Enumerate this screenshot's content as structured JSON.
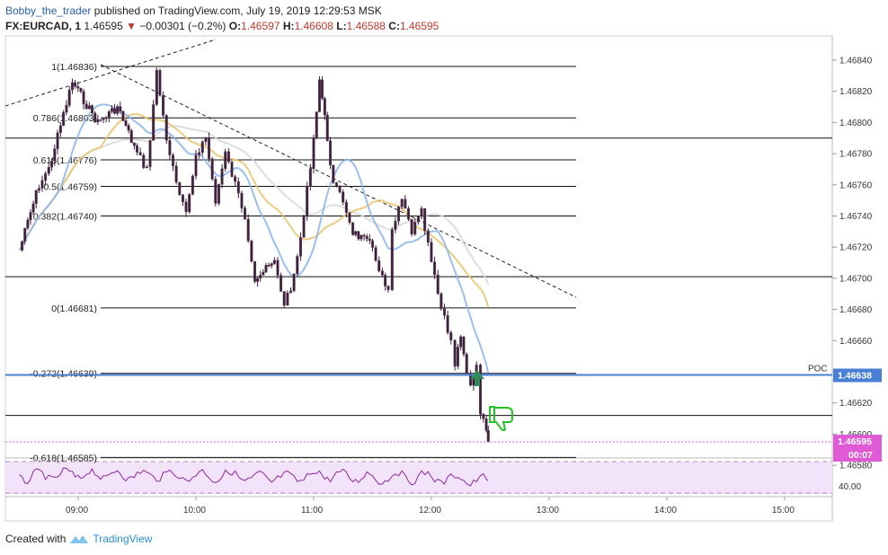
{
  "header": {
    "author": "Bobby_the_trader",
    "published_text": "published on TradingView.com, July 19, 2019 12:29:53 MSK",
    "symbol": "FX:EURCAD, 1",
    "last": "1.46595",
    "change_arrow": "▼",
    "change": "−0.00301 (−0.2%)",
    "o_label": "O:",
    "o": "1.46597",
    "h_label": "H:",
    "h": "1.46608",
    "l_label": "L:",
    "l": "1.46588",
    "c_label": "C:",
    "c": "1.46595"
  },
  "footer": {
    "created_with": "Created with",
    "brand": "TradingView",
    "logo_icon": "tradingview-logo-icon"
  },
  "colors": {
    "candle": "#3a2238",
    "blue_line": "#2962ff",
    "poc": "#4a7fd6",
    "price_badge": "#e05ad6",
    "rsi_fill": "#f3e3fa",
    "rsi_line": "#8a2aa0",
    "arrow_up": "#2e8b57",
    "thumb": "#27c227"
  },
  "chart_data": {
    "type": "candlestick",
    "symbol": "FX:EURCAD",
    "interval": "1",
    "ylim": [
      1.4657,
      1.4685
    ],
    "y_ticks": [
      "1.46840",
      "1.46820",
      "1.46800",
      "1.46780",
      "1.46760",
      "1.46740",
      "1.46720",
      "1.46700",
      "1.46680",
      "1.46660",
      "1.46640",
      "1.46620",
      "1.46600",
      "1.46580"
    ],
    "x_ticks": [
      "09:00",
      "10:00",
      "11:00",
      "12:00",
      "13:00",
      "14:00",
      "15:00"
    ],
    "ohlc_anchor_points": [
      {
        "t": "08:30",
        "price": 1.46718
      },
      {
        "t": "08:40",
        "price": 1.4676
      },
      {
        "t": "08:45",
        "price": 1.4677
      },
      {
        "t": "08:57",
        "price": 1.46826
      },
      {
        "t": "09:10",
        "price": 1.468
      },
      {
        "t": "09:20",
        "price": 1.4681
      },
      {
        "t": "09:30",
        "price": 1.4678
      },
      {
        "t": "09:35",
        "price": 1.4677
      },
      {
        "t": "09:40",
        "price": 1.46832
      },
      {
        "t": "09:45",
        "price": 1.4679
      },
      {
        "t": "09:50",
        "price": 1.4676
      },
      {
        "t": "09:55",
        "price": 1.4674
      },
      {
        "t": "10:00",
        "price": 1.4678
      },
      {
        "t": "10:05",
        "price": 1.4679
      },
      {
        "t": "10:10",
        "price": 1.4675
      },
      {
        "t": "10:15",
        "price": 1.4678
      },
      {
        "t": "10:20",
        "price": 1.4676
      },
      {
        "t": "10:25",
        "price": 1.4674
      },
      {
        "t": "10:30",
        "price": 1.467
      },
      {
        "t": "10:40",
        "price": 1.4671
      },
      {
        "t": "10:45",
        "price": 1.46684
      },
      {
        "t": "10:50",
        "price": 1.467
      },
      {
        "t": "10:55",
        "price": 1.4674
      },
      {
        "t": "11:00",
        "price": 1.4679
      },
      {
        "t": "11:03",
        "price": 1.46828
      },
      {
        "t": "11:07",
        "price": 1.4679
      },
      {
        "t": "11:10",
        "price": 1.4676
      },
      {
        "t": "11:15",
        "price": 1.4675
      },
      {
        "t": "11:20",
        "price": 1.4673
      },
      {
        "t": "11:30",
        "price": 1.4672
      },
      {
        "t": "11:35",
        "price": 1.467
      },
      {
        "t": "11:38",
        "price": 1.4669
      },
      {
        "t": "11:40",
        "price": 1.4673
      },
      {
        "t": "11:45",
        "price": 1.4675
      },
      {
        "t": "11:50",
        "price": 1.4673
      },
      {
        "t": "11:55",
        "price": 1.46742
      },
      {
        "t": "12:00",
        "price": 1.4671
      },
      {
        "t": "12:05",
        "price": 1.4668
      },
      {
        "t": "12:10",
        "price": 1.4666
      },
      {
        "t": "12:12",
        "price": 1.46645
      },
      {
        "t": "12:15",
        "price": 1.46665
      },
      {
        "t": "12:18",
        "price": 1.4664
      },
      {
        "t": "12:20",
        "price": 1.4663
      },
      {
        "t": "12:23",
        "price": 1.46642
      },
      {
        "t": "12:25",
        "price": 1.46615
      },
      {
        "t": "12:28",
        "price": 1.466
      },
      {
        "t": "12:29",
        "price": 1.46595
      }
    ],
    "fibonacci": [
      {
        "label": "1(1.46836)",
        "price": 1.46836
      },
      {
        "label": "0.786(1.46803)",
        "price": 1.46803
      },
      {
        "label": "0.618(1.46776)",
        "price": 1.46776
      },
      {
        "label": "0.5(1.46759)",
        "price": 1.46759
      },
      {
        "label": "0.382(1.46740)",
        "price": 1.4674
      },
      {
        "label": "0(1.46681)",
        "price": 1.46681
      },
      {
        "label": "-0.272(1.46639)",
        "price": 1.46639
      },
      {
        "label": "-0.618(1.46585)",
        "price": 1.46585
      }
    ],
    "horizontal_lines": [
      1.4679,
      1.46701,
      1.46612
    ],
    "poc": {
      "label": "POC",
      "value": "1.46638"
    },
    "last_price_badge": {
      "value": "1.46595",
      "countdown": "00:07"
    },
    "rsi": {
      "level_label": "40.00"
    },
    "annotations": [
      "up-arrow at 12:23",
      "thumbs-down icon at 12:32",
      "dashed trendlines from 08:30 and 09:10"
    ]
  }
}
